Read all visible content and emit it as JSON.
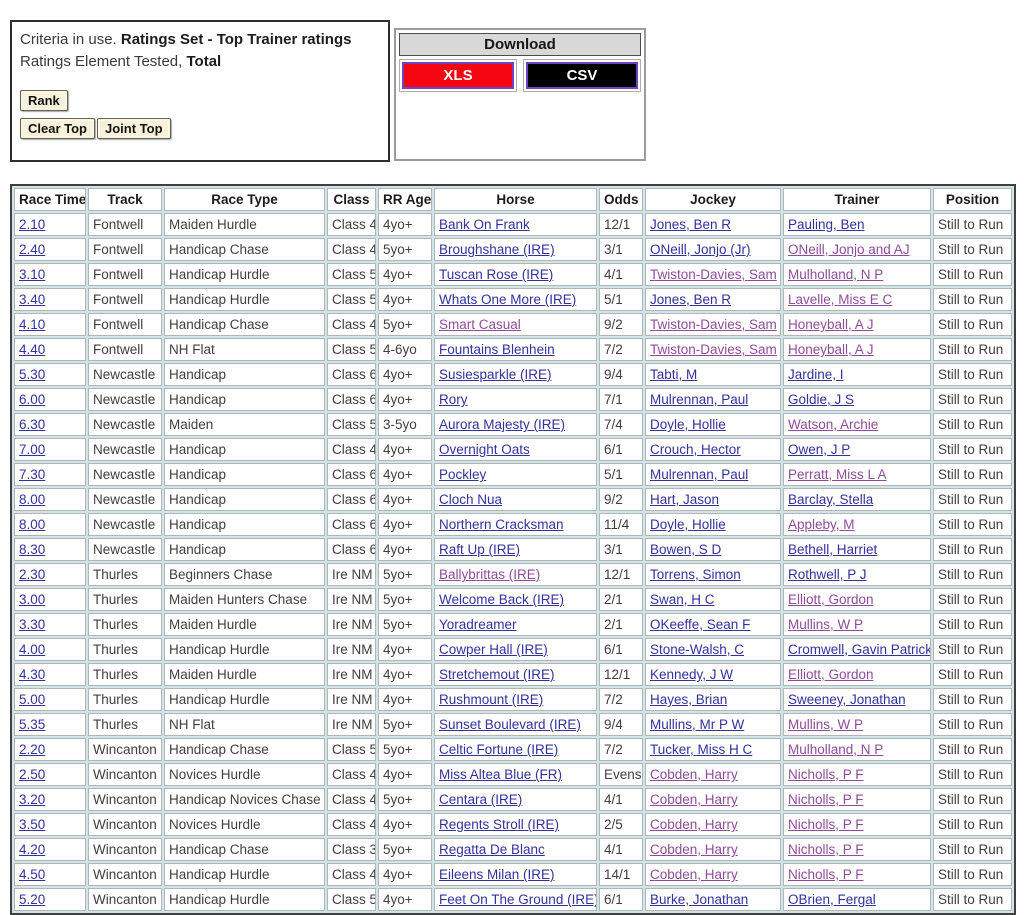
{
  "criteria": {
    "line1_normal": "Criteria in use. ",
    "line1_bold": "Ratings Set - Top Trainer ratings",
    "line2_normal": "Ratings Element Tested, ",
    "line2_bold": "Total",
    "rank_button": "Rank",
    "clear_top_button": "Clear Top",
    "joint_top_button": "Joint Top"
  },
  "download": {
    "title": "Download",
    "xls_label": "XLS",
    "csv_label": "CSV",
    "xls_color": "#f50510",
    "csv_color": "#000000",
    "button_border_color": "#6f42be"
  },
  "colors": {
    "link": "#32329e",
    "visited_link": "#8e4d98",
    "table_background": "#cfe5ea",
    "cell_text": "#3f3f3f"
  },
  "table": {
    "headers": [
      "Race Time",
      "Track",
      "Race Type",
      "Class",
      "RR Age",
      "Horse",
      "Odds",
      "Jockey",
      "Trainer",
      "Position"
    ],
    "rows": [
      {
        "time": "2.10",
        "track": "Fontwell",
        "race_type": "Maiden Hurdle",
        "race_class": "Class 4",
        "age": "4yo+",
        "horse": "Bank On Frank",
        "odds": "12/1",
        "jockey": "Jones, Ben R",
        "trainer": "Pauling, Ben",
        "position": "Still to Run",
        "horse_visited": false,
        "jockey_visited": false,
        "trainer_visited": false
      },
      {
        "time": "2.40",
        "track": "Fontwell",
        "race_type": "Handicap Chase",
        "race_class": "Class 4",
        "age": "5yo+",
        "horse": "Broughshane (IRE)",
        "odds": "3/1",
        "jockey": "ONeill, Jonjo (Jr)",
        "trainer": "ONeill, Jonjo and AJ",
        "position": "Still to Run",
        "horse_visited": false,
        "jockey_visited": false,
        "trainer_visited": true
      },
      {
        "time": "3.10",
        "track": "Fontwell",
        "race_type": "Handicap Hurdle",
        "race_class": "Class 5",
        "age": "4yo+",
        "horse": "Tuscan Rose (IRE)",
        "odds": "4/1",
        "jockey": "Twiston-Davies, Sam",
        "trainer": "Mulholland, N P",
        "position": "Still to Run",
        "horse_visited": false,
        "jockey_visited": true,
        "trainer_visited": true
      },
      {
        "time": "3.40",
        "track": "Fontwell",
        "race_type": "Handicap Hurdle",
        "race_class": "Class 5",
        "age": "4yo+",
        "horse": "Whats One More (IRE)",
        "odds": "5/1",
        "jockey": "Jones, Ben R",
        "trainer": "Lavelle, Miss E C",
        "position": "Still to Run",
        "horse_visited": false,
        "jockey_visited": false,
        "trainer_visited": true
      },
      {
        "time": "4.10",
        "track": "Fontwell",
        "race_type": "Handicap Chase",
        "race_class": "Class 4",
        "age": "5yo+",
        "horse": "Smart Casual",
        "odds": "9/2",
        "jockey": "Twiston-Davies, Sam",
        "trainer": "Honeyball, A J",
        "position": "Still to Run",
        "horse_visited": true,
        "jockey_visited": true,
        "trainer_visited": true
      },
      {
        "time": "4.40",
        "track": "Fontwell",
        "race_type": "NH Flat",
        "race_class": "Class 5",
        "age": "4-6yo",
        "horse": "Fountains Blenhein",
        "odds": "7/2",
        "jockey": "Twiston-Davies, Sam",
        "trainer": "Honeyball, A J",
        "position": "Still to Run",
        "horse_visited": false,
        "jockey_visited": true,
        "trainer_visited": true
      },
      {
        "time": "5.30",
        "track": "Newcastle",
        "race_type": "Handicap",
        "race_class": "Class 6",
        "age": "4yo+",
        "horse": "Susiesparkle (IRE)",
        "odds": "9/4",
        "jockey": "Tabti, M",
        "trainer": "Jardine, I",
        "position": "Still to Run",
        "horse_visited": false,
        "jockey_visited": false,
        "trainer_visited": false
      },
      {
        "time": "6.00",
        "track": "Newcastle",
        "race_type": "Handicap",
        "race_class": "Class 6",
        "age": "4yo+",
        "horse": "Rory",
        "odds": "7/1",
        "jockey": "Mulrennan, Paul",
        "trainer": "Goldie, J S",
        "position": "Still to Run",
        "horse_visited": false,
        "jockey_visited": false,
        "trainer_visited": false
      },
      {
        "time": "6.30",
        "track": "Newcastle",
        "race_type": "Maiden",
        "race_class": "Class 5",
        "age": "3-5yo",
        "horse": "Aurora Majesty (IRE)",
        "odds": "7/4",
        "jockey": "Doyle, Hollie",
        "trainer": "Watson, Archie",
        "position": "Still to Run",
        "horse_visited": false,
        "jockey_visited": false,
        "trainer_visited": true
      },
      {
        "time": "7.00",
        "track": "Newcastle",
        "race_type": "Handicap",
        "race_class": "Class 4",
        "age": "4yo+",
        "horse": "Overnight Oats",
        "odds": "6/1",
        "jockey": "Crouch, Hector",
        "trainer": "Owen, J P",
        "position": "Still to Run",
        "horse_visited": false,
        "jockey_visited": false,
        "trainer_visited": false
      },
      {
        "time": "7.30",
        "track": "Newcastle",
        "race_type": "Handicap",
        "race_class": "Class 6",
        "age": "4yo+",
        "horse": "Pockley",
        "odds": "5/1",
        "jockey": "Mulrennan, Paul",
        "trainer": "Perratt, Miss L A",
        "position": "Still to Run",
        "horse_visited": false,
        "jockey_visited": false,
        "trainer_visited": true
      },
      {
        "time": "8.00",
        "track": "Newcastle",
        "race_type": "Handicap",
        "race_class": "Class 6",
        "age": "4yo+",
        "horse": "Cloch Nua",
        "odds": "9/2",
        "jockey": "Hart, Jason",
        "trainer": "Barclay, Stella",
        "position": "Still to Run",
        "horse_visited": false,
        "jockey_visited": false,
        "trainer_visited": false
      },
      {
        "time": "8.00",
        "track": "Newcastle",
        "race_type": "Handicap",
        "race_class": "Class 6",
        "age": "4yo+",
        "horse": "Northern Cracksman",
        "odds": "11/4",
        "jockey": "Doyle, Hollie",
        "trainer": "Appleby, M",
        "position": "Still to Run",
        "horse_visited": false,
        "jockey_visited": false,
        "trainer_visited": true
      },
      {
        "time": "8.30",
        "track": "Newcastle",
        "race_type": "Handicap",
        "race_class": "Class 6",
        "age": "4yo+",
        "horse": "Raft Up (IRE)",
        "odds": "3/1",
        "jockey": "Bowen, S D",
        "trainer": "Bethell, Harriet",
        "position": "Still to Run",
        "horse_visited": false,
        "jockey_visited": false,
        "trainer_visited": false
      },
      {
        "time": "2.30",
        "track": "Thurles",
        "race_type": "Beginners Chase",
        "race_class": "Ire NM",
        "age": "5yo+",
        "horse": "Ballybrittas (IRE)",
        "odds": "12/1",
        "jockey": "Torrens, Simon",
        "trainer": "Rothwell, P J",
        "position": "Still to Run",
        "horse_visited": true,
        "jockey_visited": false,
        "trainer_visited": false
      },
      {
        "time": "3.00",
        "track": "Thurles",
        "race_type": "Maiden Hunters Chase",
        "race_class": "Ire NM",
        "age": "5yo+",
        "horse": "Welcome Back (IRE)",
        "odds": "2/1",
        "jockey": "Swan, H C",
        "trainer": "Elliott, Gordon",
        "position": "Still to Run",
        "horse_visited": false,
        "jockey_visited": false,
        "trainer_visited": true
      },
      {
        "time": "3.30",
        "track": "Thurles",
        "race_type": "Maiden Hurdle",
        "race_class": "Ire NM",
        "age": "5yo+",
        "horse": "Yoradreamer",
        "odds": "2/1",
        "jockey": "OKeeffe, Sean F",
        "trainer": "Mullins, W P",
        "position": "Still to Run",
        "horse_visited": false,
        "jockey_visited": false,
        "trainer_visited": true
      },
      {
        "time": "4.00",
        "track": "Thurles",
        "race_type": "Handicap Hurdle",
        "race_class": "Ire NM",
        "age": "4yo+",
        "horse": "Cowper Hall (IRE)",
        "odds": "6/1",
        "jockey": "Stone-Walsh, C",
        "trainer": "Cromwell, Gavin Patrick",
        "position": "Still to Run",
        "horse_visited": false,
        "jockey_visited": false,
        "trainer_visited": false
      },
      {
        "time": "4.30",
        "track": "Thurles",
        "race_type": "Maiden Hurdle",
        "race_class": "Ire NM",
        "age": "4yo+",
        "horse": "Stretchemout (IRE)",
        "odds": "12/1",
        "jockey": "Kennedy, J W",
        "trainer": "Elliott, Gordon",
        "position": "Still to Run",
        "horse_visited": false,
        "jockey_visited": false,
        "trainer_visited": true
      },
      {
        "time": "5.00",
        "track": "Thurles",
        "race_type": "Handicap Hurdle",
        "race_class": "Ire NM",
        "age": "4yo+",
        "horse": "Rushmount (IRE)",
        "odds": "7/2",
        "jockey": "Hayes, Brian",
        "trainer": "Sweeney, Jonathan",
        "position": "Still to Run",
        "horse_visited": false,
        "jockey_visited": false,
        "trainer_visited": false
      },
      {
        "time": "5.35",
        "track": "Thurles",
        "race_type": "NH Flat",
        "race_class": "Ire NM",
        "age": "5yo+",
        "horse": "Sunset Boulevard (IRE)",
        "odds": "9/4",
        "jockey": "Mullins, Mr P W",
        "trainer": "Mullins, W P",
        "position": "Still to Run",
        "horse_visited": false,
        "jockey_visited": false,
        "trainer_visited": true
      },
      {
        "time": "2.20",
        "track": "Wincanton",
        "race_type": "Handicap Chase",
        "race_class": "Class 5",
        "age": "5yo+",
        "horse": "Celtic Fortune (IRE)",
        "odds": "7/2",
        "jockey": "Tucker, Miss H C",
        "trainer": "Mulholland, N P",
        "position": "Still to Run",
        "horse_visited": false,
        "jockey_visited": false,
        "trainer_visited": true
      },
      {
        "time": "2.50",
        "track": "Wincanton",
        "race_type": "Novices Hurdle",
        "race_class": "Class 4",
        "age": "4yo+",
        "horse": "Miss Altea Blue (FR)",
        "odds": "Evens",
        "jockey": "Cobden, Harry",
        "trainer": "Nicholls, P F",
        "position": "Still to Run",
        "horse_visited": false,
        "jockey_visited": true,
        "trainer_visited": true
      },
      {
        "time": "3.20",
        "track": "Wincanton",
        "race_type": "Handicap Novices Chase",
        "race_class": "Class 4",
        "age": "5yo+",
        "horse": "Centara (IRE)",
        "odds": "4/1",
        "jockey": "Cobden, Harry",
        "trainer": "Nicholls, P F",
        "position": "Still to Run",
        "horse_visited": false,
        "jockey_visited": true,
        "trainer_visited": true
      },
      {
        "time": "3.50",
        "track": "Wincanton",
        "race_type": "Novices Hurdle",
        "race_class": "Class 4",
        "age": "4yo+",
        "horse": "Regents Stroll (IRE)",
        "odds": "2/5",
        "jockey": "Cobden, Harry",
        "trainer": "Nicholls, P F",
        "position": "Still to Run",
        "horse_visited": false,
        "jockey_visited": true,
        "trainer_visited": true
      },
      {
        "time": "4.20",
        "track": "Wincanton",
        "race_type": "Handicap Chase",
        "race_class": "Class 3",
        "age": "5yo+",
        "horse": "Regatta De Blanc",
        "odds": "4/1",
        "jockey": "Cobden, Harry",
        "trainer": "Nicholls, P F",
        "position": "Still to Run",
        "horse_visited": false,
        "jockey_visited": true,
        "trainer_visited": true
      },
      {
        "time": "4.50",
        "track": "Wincanton",
        "race_type": "Handicap Hurdle",
        "race_class": "Class 4",
        "age": "4yo+",
        "horse": "Eileens Milan (IRE)",
        "odds": "14/1",
        "jockey": "Cobden, Harry",
        "trainer": "Nicholls, P F",
        "position": "Still to Run",
        "horse_visited": false,
        "jockey_visited": true,
        "trainer_visited": true
      },
      {
        "time": "5.20",
        "track": "Wincanton",
        "race_type": "Handicap Hurdle",
        "race_class": "Class 5",
        "age": "4yo+",
        "horse": "Feet On The Ground (IRE)",
        "odds": "6/1",
        "jockey": "Burke, Jonathan",
        "trainer": "OBrien, Fergal",
        "position": "Still to Run",
        "horse_visited": false,
        "jockey_visited": false,
        "trainer_visited": false
      }
    ]
  }
}
